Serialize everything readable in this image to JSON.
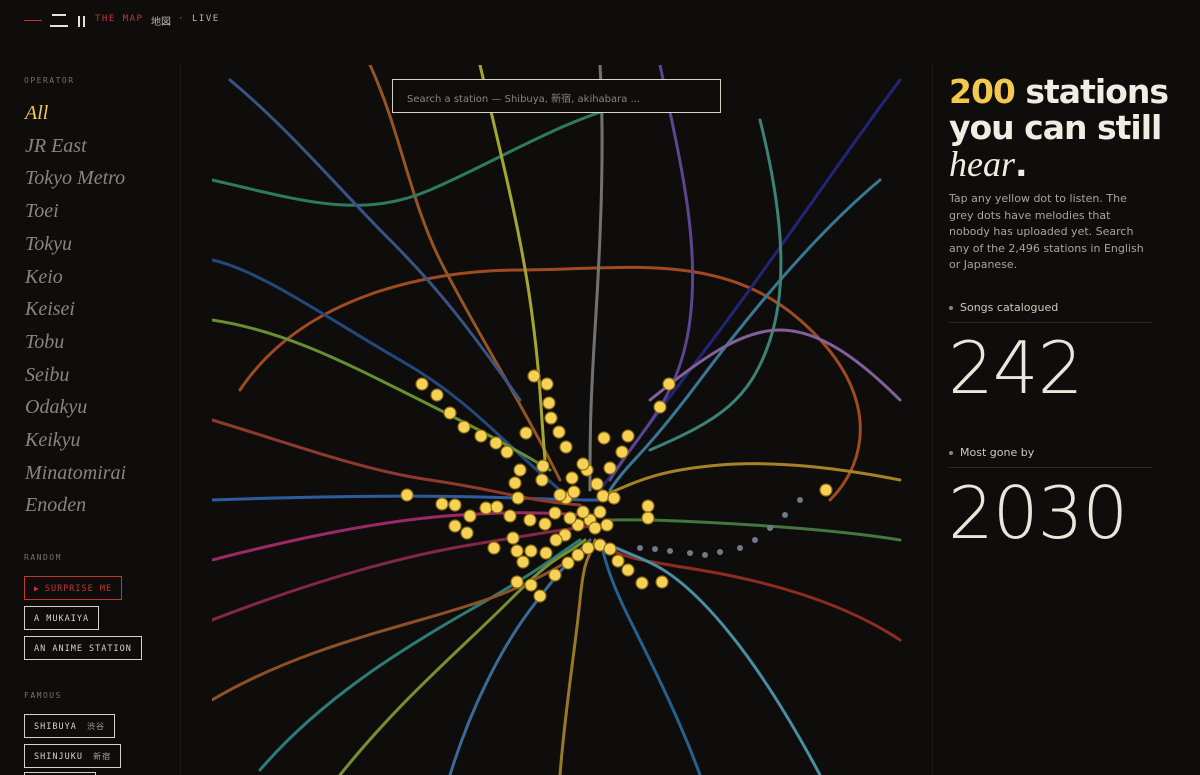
{
  "header": {
    "brand": "THE MAP",
    "kanji": "地図",
    "separator": "·",
    "status": "LIVE"
  },
  "sidebar": {
    "operator_label": "OPERATOR",
    "operators": [
      "All",
      "JR East",
      "Tokyo Metro",
      "Toei",
      "Tokyu",
      "Keio",
      "Keisei",
      "Tobu",
      "Seibu",
      "Odakyu",
      "Keikyu",
      "Minatomirai",
      "Enoden"
    ],
    "random_label": "RANDOM",
    "random_buttons": [
      "SURPRISE ME",
      "A MUKAIYA",
      "AN ANIME STATION"
    ],
    "famous_label": "FAMOUS",
    "famous_buttons": [
      {
        "name": "SHIBUYA",
        "kanji": "渋谷"
      },
      {
        "name": "SHINJUKU",
        "kanji": "新宿"
      }
    ]
  },
  "map": {
    "search_placeholder": "Search a station — Shibuya, 新宿, akihabara ..."
  },
  "panel": {
    "count": 200,
    "headline": "stations you can still",
    "emphasis": "hear",
    "period": ".",
    "description": "Tap any yellow dot to listen. The grey dots have melodies that nobody has uploaded yet. Search any of the 2,496 stations in English or Japanese.",
    "stats": [
      {
        "label": "Songs catalogued",
        "value": 242
      },
      {
        "label": "Most gone by",
        "value": 2030
      }
    ]
  }
}
